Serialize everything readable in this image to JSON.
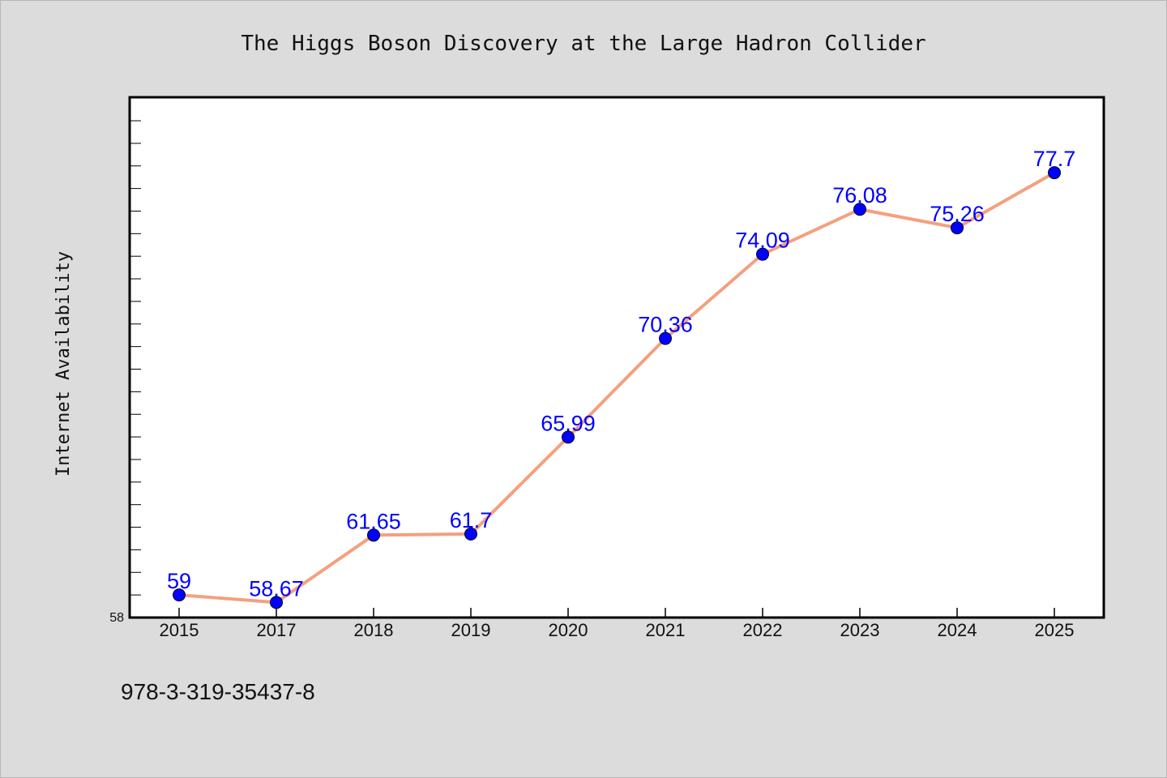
{
  "chart_data": {
    "type": "line",
    "title": "The Higgs Boson Discovery at the Large Hadron Collider",
    "xlabel": "",
    "ylabel": "Internet Availability",
    "categories": [
      "2015",
      "2017",
      "2018",
      "2019",
      "2020",
      "2021",
      "2022",
      "2023",
      "2024",
      "2025"
    ],
    "series": [
      {
        "values": [
          59,
          58.67,
          61.65,
          61.7,
          65.99,
          70.36,
          74.09,
          76.08,
          75.26,
          77.7
        ],
        "labels": [
          "59",
          "58.67",
          "61.65",
          "61.7",
          "65.99",
          "70.36",
          "74.09",
          "76.08",
          "75.26",
          "77.7"
        ],
        "line_color": "#f4a07f",
        "marker_color": "#0000ff"
      }
    ],
    "ylim": [
      58,
      80
    ],
    "y_tick_labels": [
      "58"
    ],
    "grid": false,
    "legend": "none"
  },
  "footer": {
    "note": "978-3-319-35437-8"
  },
  "colors": {
    "background": "#dcdcdc",
    "plot_area": "#ffffff",
    "axis": "#000000"
  }
}
